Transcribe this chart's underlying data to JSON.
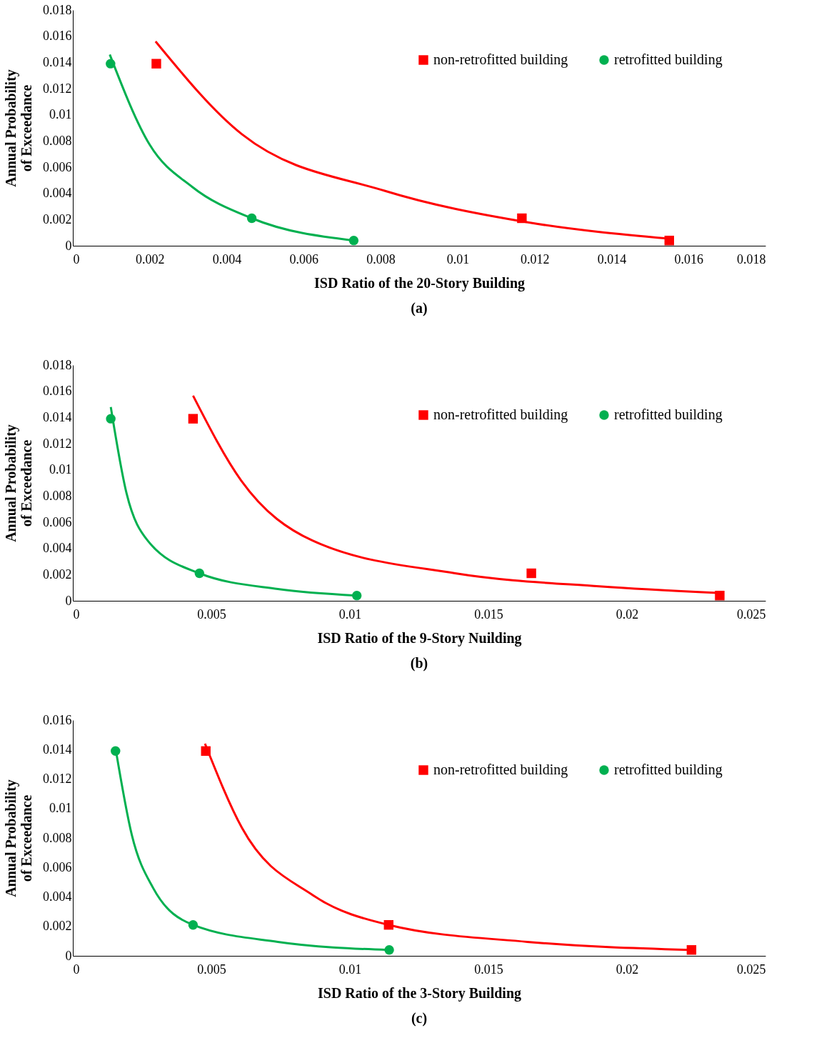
{
  "chart_data": [
    {
      "type": "scatter",
      "xlabel": "ISD Ratio of the 20-Story Building",
      "ylabel": "Annual Probability of Exceedance",
      "annotations": [
        "(a)"
      ],
      "xlim": [
        0,
        0.018
      ],
      "xticks": [
        0,
        0.002,
        0.004,
        0.006,
        0.008,
        0.01,
        0.012,
        0.014,
        0.016,
        0.018
      ],
      "ylim": [
        0,
        0.018
      ],
      "yticks": [
        0,
        0.002,
        0.004,
        0.006,
        0.008,
        0.01,
        0.012,
        0.014,
        0.016,
        0.018
      ],
      "legend": "top right",
      "grid": false,
      "series": [
        {
          "name": "non-retrofitted building",
          "color": "#ff0000",
          "type": "scatter",
          "marker": "square",
          "x": [
            0.00217,
            0.01167,
            0.0155
          ],
          "values": [
            0.0139,
            0.0021,
            0.0004
          ]
        },
        {
          "name": "retrofitted building",
          "color": "#00b050",
          "type": "scatter",
          "marker": "circle",
          "x": [
            0.00098,
            0.00465,
            0.0073
          ],
          "values": [
            0.0139,
            0.0021,
            0.0004
          ]
        },
        {
          "color": "#ff0000",
          "type": "line",
          "x": [
            0.00215,
            0.0044,
            0.0081,
            0.0118,
            0.0155
          ],
          "values": [
            0.0156,
            0.0085,
            0.0042,
            0.0018,
            0.00054
          ]
        },
        {
          "color": "#00b050",
          "type": "line",
          "x": [
            0.00096,
            0.002,
            0.0031,
            0.00465,
            0.0073
          ],
          "values": [
            0.0146,
            0.0077,
            0.0045,
            0.0021,
            0.0004
          ]
        }
      ]
    },
    {
      "type": "scatter",
      "xlabel": "ISD Ratio of the 9-Story Nuilding",
      "ylabel": "Annual Probability of Exceedance",
      "annotations": [
        "(b)"
      ],
      "xlim": [
        0,
        0.025
      ],
      "xticks": [
        0,
        0.005,
        0.01,
        0.015,
        0.02,
        0.025
      ],
      "ylim": [
        0,
        0.018
      ],
      "yticks": [
        0,
        0.002,
        0.004,
        0.006,
        0.008,
        0.01,
        0.012,
        0.014,
        0.016,
        0.018
      ],
      "legend": "top right",
      "grid": false,
      "series": [
        {
          "name": "non-retrofitted building",
          "color": "#ff0000",
          "type": "scatter",
          "marker": "square",
          "x": [
            0.00434,
            0.01655,
            0.02335
          ],
          "values": [
            0.0139,
            0.0021,
            0.0004
          ]
        },
        {
          "name": "retrofitted building",
          "color": "#00b050",
          "type": "scatter",
          "marker": "circle",
          "x": [
            0.00137,
            0.00457,
            0.01025
          ],
          "values": [
            0.0139,
            0.0021,
            0.0004
          ]
        },
        {
          "color": "#ff0000",
          "type": "line",
          "x": [
            0.00434,
            0.00607,
            0.00865,
            0.0138,
            0.019,
            0.0233
          ],
          "values": [
            0.01566,
            0.0092,
            0.0046,
            0.0021,
            0.0011,
            0.0006
          ]
        },
        {
          "color": "#00b050",
          "type": "line",
          "x": [
            0.00137,
            0.00194,
            0.0027,
            0.00457,
            0.0074,
            0.01025
          ],
          "values": [
            0.0148,
            0.0082,
            0.0046,
            0.0021,
            0.0009,
            0.0004
          ]
        }
      ]
    },
    {
      "type": "scatter",
      "xlabel": "ISD Ratio of the 3-Story Building",
      "ylabel": "Annual Probability of Exceedance",
      "annotations": [
        "(c)"
      ],
      "xlim": [
        0,
        0.025
      ],
      "xticks": [
        0,
        0.005,
        0.01,
        0.015,
        0.02,
        0.025
      ],
      "ylim": [
        0,
        0.016
      ],
      "yticks": [
        0,
        0.002,
        0.004,
        0.006,
        0.008,
        0.01,
        0.012,
        0.014,
        0.016
      ],
      "legend": "top right",
      "grid": false,
      "series": [
        {
          "name": "non-retrofitted building",
          "color": "#ff0000",
          "type": "scatter",
          "marker": "square",
          "x": [
            0.0048,
            0.0114,
            0.02233
          ],
          "values": [
            0.0139,
            0.0021,
            0.0004
          ]
        },
        {
          "name": "retrofitted building",
          "color": "#00b050",
          "type": "scatter",
          "marker": "circle",
          "x": [
            0.00154,
            0.00434,
            0.01142
          ],
          "values": [
            0.0139,
            0.0021,
            0.0004
          ]
        },
        {
          "color": "#ff0000",
          "type": "line",
          "x": [
            0.00477,
            0.0061,
            0.00868,
            0.0114,
            0.0164,
            0.0223
          ],
          "values": [
            0.0144,
            0.0087,
            0.0041,
            0.0021,
            0.00095,
            0.0004
          ]
        },
        {
          "color": "#00b050",
          "type": "line",
          "x": [
            0.00154,
            0.00213,
            0.0029,
            0.00434,
            0.0074,
            0.0114
          ],
          "values": [
            0.0141,
            0.0082,
            0.0046,
            0.0021,
            0.00095,
            0.0004
          ]
        }
      ]
    }
  ]
}
